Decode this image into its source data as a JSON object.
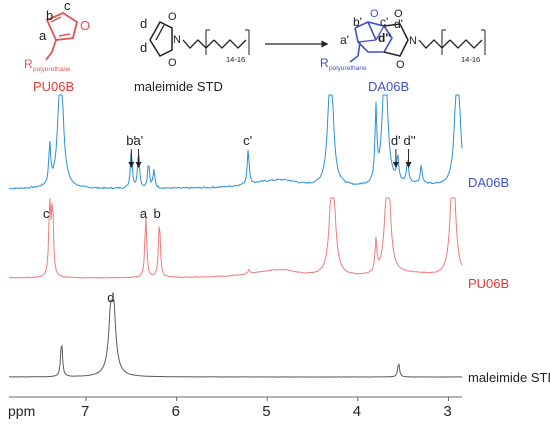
{
  "colors": {
    "blue": "#2e8fd6",
    "red": "#ee7b7b",
    "gray": "#5a5a5a",
    "label_red": "#e53935",
    "label_blue": "#3f51c8",
    "struct_red": "#e05454",
    "struct_blue": "#3d52c4",
    "black": "#222222"
  },
  "structures": {
    "pu": {
      "name": "PU06B",
      "sub_r": "polyurethane",
      "labels": {
        "a": "a",
        "b": "b",
        "c": "c"
      }
    },
    "mal": {
      "name": "maleimide STD",
      "chain": "14-16",
      "labels": {
        "d": "d"
      }
    },
    "da": {
      "name": "DA06B",
      "sub_r": "polyurethane",
      "chain": "14-16",
      "labels": {
        "b": "b'",
        "c": "c'",
        "a": "a'",
        "d1": "d'",
        "d2": "d''"
      }
    }
  },
  "chart_data": {
    "type": "line",
    "xlabel": "ppm",
    "x_reversed": true,
    "xlim": [
      7.85,
      2.85
    ],
    "ticks": [
      "7",
      "6",
      "5",
      "4",
      "3"
    ],
    "series": [
      {
        "name": "DA06B",
        "peaks": [
          {
            "x": 7.4,
            "h": 0.45
          },
          {
            "x": 7.28,
            "h": 1.5
          },
          {
            "x": 6.5,
            "h": 0.42
          },
          {
            "x": 6.42,
            "h": 0.42
          },
          {
            "x": 6.31,
            "h": 0.28
          },
          {
            "x": 6.25,
            "h": 0.2
          },
          {
            "x": 5.21,
            "h": 0.4
          },
          {
            "x": 4.3,
            "h": 1.5
          },
          {
            "x": 3.8,
            "h": 0.8
          },
          {
            "x": 3.7,
            "h": 1.5
          },
          {
            "x": 3.56,
            "h": 0.28
          },
          {
            "x": 3.45,
            "h": 0.25
          },
          {
            "x": 3.3,
            "h": 0.2
          },
          {
            "x": 2.9,
            "h": 1.5
          }
        ],
        "annotations": [
          {
            "text": "b'",
            "x": 6.5,
            "arrow": true
          },
          {
            "text": "a'",
            "x": 6.42,
            "arrow": true
          },
          {
            "text": "c'",
            "x": 5.21,
            "arrow": false
          },
          {
            "text": "d'",
            "x": 3.58,
            "arrow": true
          },
          {
            "text": "d''",
            "x": 3.44,
            "arrow": true
          }
        ]
      },
      {
        "name": "PU06B",
        "peaks": [
          {
            "x": 7.4,
            "h": 0.95
          },
          {
            "x": 7.37,
            "h": 0.9
          },
          {
            "x": 6.34,
            "h": 0.78
          },
          {
            "x": 6.19,
            "h": 0.72
          },
          {
            "x": 5.2,
            "h": 0.05
          },
          {
            "x": 4.28,
            "h": 1.5
          },
          {
            "x": 3.8,
            "h": 0.4
          },
          {
            "x": 3.67,
            "h": 1.5
          },
          {
            "x": 2.95,
            "h": 1.5
          }
        ],
        "annotations": [
          {
            "text": "c",
            "x": 7.42,
            "arrow": false
          },
          {
            "text": "a",
            "x": 6.35,
            "arrow": false
          },
          {
            "text": "b",
            "x": 6.2,
            "arrow": false
          }
        ]
      },
      {
        "name": "maleimide STD",
        "peaks": [
          {
            "x": 7.27,
            "h": 0.45
          },
          {
            "x": 6.71,
            "h": 1.4
          },
          {
            "x": 3.55,
            "h": 0.18
          }
        ],
        "annotations": [
          {
            "text": "d",
            "x": 6.71,
            "arrow": false
          }
        ]
      }
    ]
  }
}
